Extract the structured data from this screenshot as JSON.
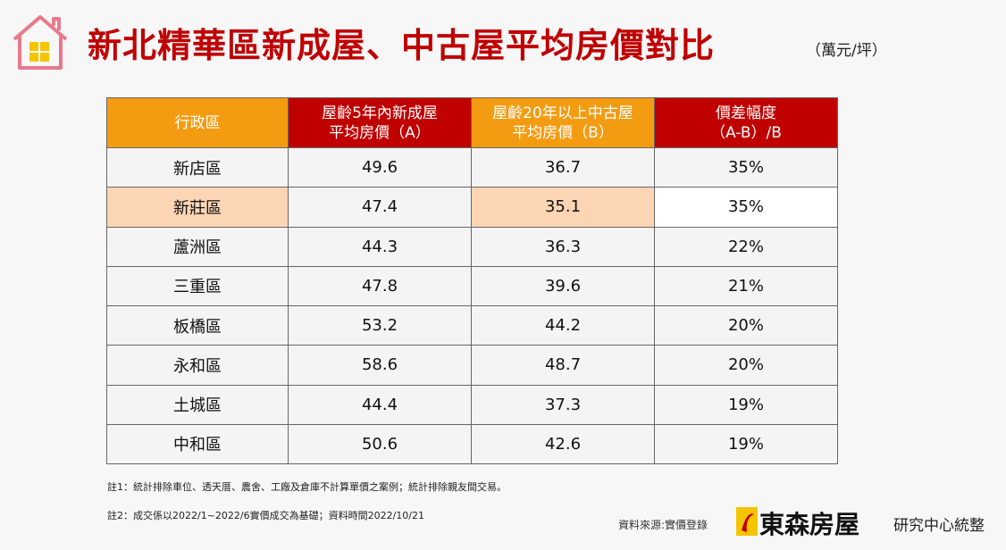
{
  "header": {
    "title": "新北精華區新成屋、中古屋平均房價對比",
    "unit": "（萬元/坪）"
  },
  "table": {
    "columns": [
      [
        "行政區"
      ],
      [
        "屋齡5年內新成屋",
        "平均房價（A）"
      ],
      [
        "屋齡20年以上中古屋",
        "平均房價（B）"
      ],
      [
        "價差幅度",
        "（A-B）/B"
      ]
    ],
    "rows": [
      [
        "新店區",
        "49.6",
        "36.7",
        "35%"
      ],
      [
        "新莊區",
        "47.4",
        "35.1",
        "35%"
      ],
      [
        "蘆洲區",
        "44.3",
        "36.3",
        "22%"
      ],
      [
        "三重區",
        "47.8",
        "39.6",
        "21%"
      ],
      [
        "板橋區",
        "53.2",
        "44.2",
        "20%"
      ],
      [
        "永和區",
        "58.6",
        "48.7",
        "20%"
      ],
      [
        "土城區",
        "44.4",
        "37.3",
        "19%"
      ],
      [
        "中和區",
        "50.6",
        "42.6",
        "19%"
      ]
    ]
  },
  "notes": [
    "註1：統計排除車位、透天厝、農舍、工廠及倉庫不計算單價之案例；統計排除親友間交易。",
    "註2：成交係以2022/1~2022/6實價成交為基礎；資料時間2022/10/21"
  ],
  "source": "資料來源:實價登錄",
  "brand": {
    "name": "東森房屋",
    "suffix": "研究中心統整"
  }
}
